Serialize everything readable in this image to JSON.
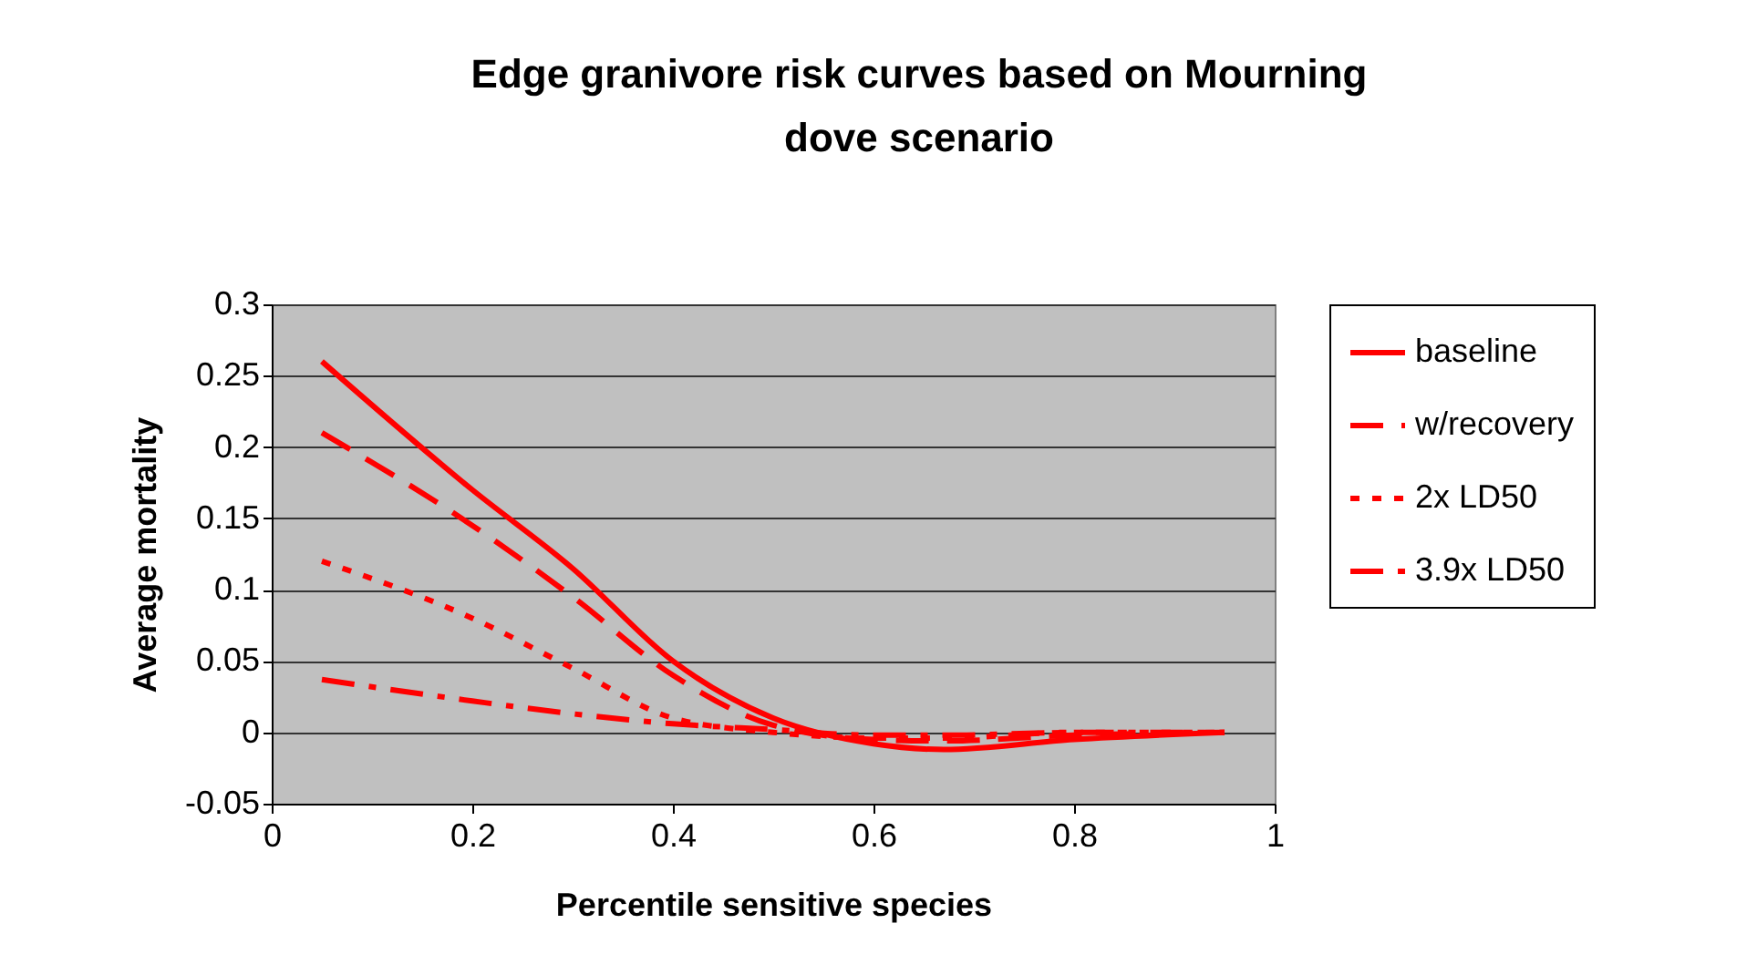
{
  "chart_data": {
    "type": "line",
    "title": "Edge granivore risk curves based on Mourning dove scenario",
    "xlabel": "Percentile sensitive species",
    "ylabel": "Average mortality",
    "x": [
      0.05,
      0.2,
      0.3,
      0.4,
      0.5,
      0.6,
      0.67,
      0.8,
      0.95
    ],
    "series": [
      {
        "name": "baseline",
        "color": "#ff0000",
        "line_style": "solid",
        "values": [
          0.26,
          0.17,
          0.115,
          0.05,
          0.01,
          -0.008,
          -0.012,
          -0.005,
          0
        ]
      },
      {
        "name": "w/recovery",
        "color": "#ff0000",
        "line_style": "dashed",
        "values": [
          0.21,
          0.145,
          0.095,
          0.04,
          0.005,
          -0.005,
          -0.006,
          -0.002,
          0
        ]
      },
      {
        "name": "2x LD50",
        "color": "#ff0000",
        "line_style": "dotted",
        "values": [
          0.12,
          0.08,
          0.045,
          0.01,
          0,
          -0.004,
          -0.004,
          0,
          0
        ]
      },
      {
        "name": "3.9x LD50",
        "color": "#ff0000",
        "line_style": "dashdot",
        "values": [
          0.037,
          0.022,
          0.013,
          0.006,
          0.002,
          -0.002,
          -0.002,
          0,
          0
        ]
      }
    ],
    "xlim": [
      0,
      1
    ],
    "xticks": [
      0,
      0.2,
      0.4,
      0.6,
      0.8,
      1
    ],
    "ylim": [
      -0.05,
      0.3
    ],
    "yticks": [
      -0.05,
      0,
      0.05,
      0.1,
      0.15,
      0.2,
      0.25,
      0.3
    ],
    "grid": "y",
    "legend": "right",
    "marker": "none"
  }
}
